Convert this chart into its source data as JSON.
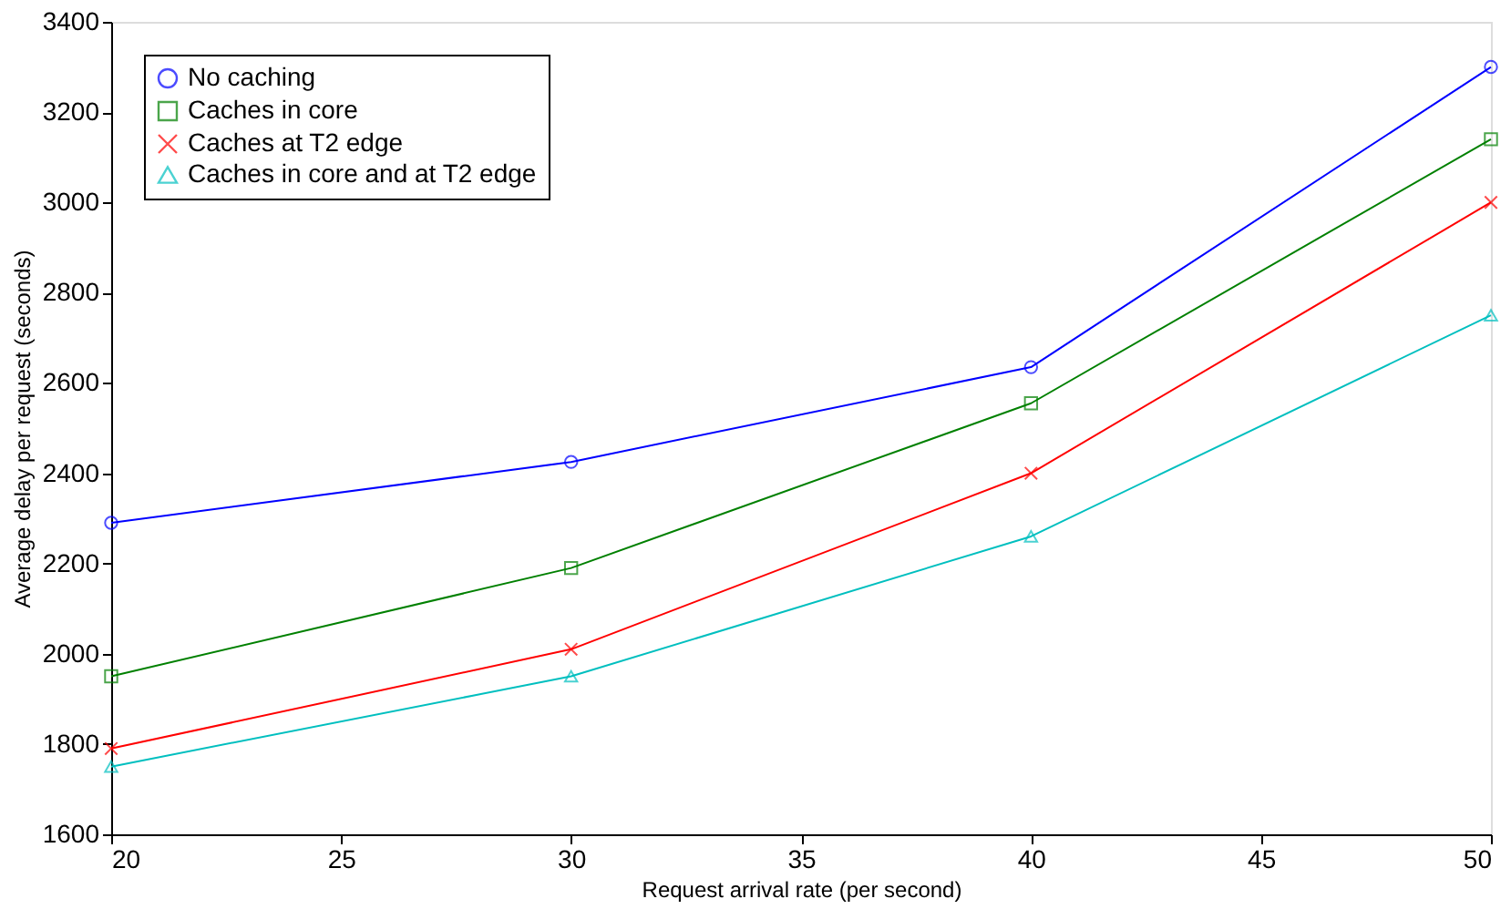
{
  "chart_data": {
    "type": "line",
    "xlabel": "Request arrival rate (per second)",
    "ylabel": "Average delay per request (seconds)",
    "x": [
      20,
      30,
      40,
      50
    ],
    "series": [
      {
        "name": "No caching",
        "color": "#0000ff",
        "marker": "circle",
        "values": [
          2290,
          2425,
          2635,
          3300
        ]
      },
      {
        "name": "Caches in core",
        "color": "#008000",
        "marker": "square",
        "values": [
          1950,
          2190,
          2555,
          3140
        ]
      },
      {
        "name": "Caches at T2 edge",
        "color": "#ff0000",
        "marker": "cross",
        "values": [
          1790,
          2010,
          2400,
          3000
        ]
      },
      {
        "name": "Caches in core and at T2 edge",
        "color": "#00bfbf",
        "marker": "triangle",
        "values": [
          1750,
          1950,
          2260,
          2750
        ]
      }
    ],
    "xlim": [
      20,
      50
    ],
    "xticks": [
      20,
      25,
      30,
      35,
      40,
      45,
      50
    ],
    "ylim": [
      1600,
      3400
    ],
    "yticks": [
      1600,
      1800,
      2000,
      2200,
      2400,
      2600,
      2800,
      3000,
      3200,
      3400
    ],
    "grid": false,
    "legend": "top left",
    "line_style": "solid"
  }
}
